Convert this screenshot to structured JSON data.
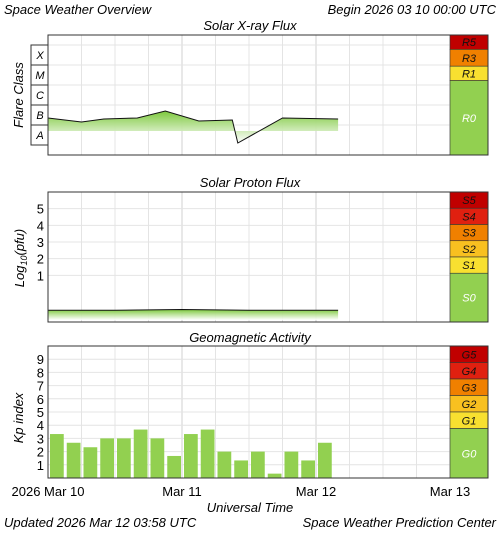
{
  "header": {
    "title": "Space Weather Overview",
    "begin": "Begin 2026 03 10 00:00 UTC"
  },
  "footer": {
    "updated": "Updated 2026 Mar 12 03:58 UTC",
    "center": "Space Weather Prediction Center"
  },
  "chart_data": [
    {
      "type": "line",
      "title": "Solar X-ray Flux",
      "ylabel": "Flare Class",
      "y_scale": "flare class (log)",
      "ylim": [
        0,
        6
      ],
      "y_ticks": [
        "A",
        "B",
        "C",
        "M",
        "X"
      ],
      "x": [
        "2026-03-10T00:00",
        "2026-03-10T06:00",
        "2026-03-10T10:00",
        "2026-03-10T16:00",
        "2026-03-10T21:00",
        "2026-03-11T03:00",
        "2026-03-11T09:00",
        "2026-03-11T10:00",
        "2026-03-11T18:00",
        "2026-03-12T03:58"
      ],
      "values": [
        1.85,
        1.65,
        1.8,
        1.85,
        2.2,
        1.7,
        1.75,
        0.6,
        1.85,
        1.8
      ],
      "scale_levels": [
        {
          "label": "R5",
          "color": "#c00000"
        },
        {
          "label": "R3",
          "color": "#f08000"
        },
        {
          "label": "R1",
          "color": "#f8e030"
        },
        {
          "label": "R0",
          "color": "#92d050"
        }
      ]
    },
    {
      "type": "line",
      "title": "Solar Proton Flux",
      "ylabel": "Log10(pfu)",
      "ylim": [
        -1.8,
        6
      ],
      "y_ticks": [
        1,
        2,
        3,
        4,
        5
      ],
      "x": [
        "2026-03-10T00:00",
        "2026-03-10T12:00",
        "2026-03-11T00:00",
        "2026-03-11T12:00",
        "2026-03-12T03:58"
      ],
      "values": [
        -1.1,
        -1.1,
        -1.05,
        -1.1,
        -1.1
      ],
      "scale_levels": [
        {
          "label": "S5",
          "color": "#c00000"
        },
        {
          "label": "S4",
          "color": "#e02010"
        },
        {
          "label": "S3",
          "color": "#f08000"
        },
        {
          "label": "S2",
          "color": "#f8c020"
        },
        {
          "label": "S1",
          "color": "#f8e030"
        },
        {
          "label": "S0",
          "color": "#92d050"
        }
      ]
    },
    {
      "type": "bar",
      "title": "Geomagnetic Activity",
      "ylabel": "Kp index",
      "ylim": [
        0,
        10
      ],
      "y_ticks": [
        1,
        2,
        3,
        4,
        5,
        6,
        7,
        8,
        9
      ],
      "categories": [
        "2026-03-10T00:00",
        "2026-03-10T03:00",
        "2026-03-10T06:00",
        "2026-03-10T09:00",
        "2026-03-10T12:00",
        "2026-03-10T15:00",
        "2026-03-10T18:00",
        "2026-03-10T21:00",
        "2026-03-11T00:00",
        "2026-03-11T03:00",
        "2026-03-11T06:00",
        "2026-03-11T09:00",
        "2026-03-11T12:00",
        "2026-03-11T15:00",
        "2026-03-11T18:00",
        "2026-03-11T21:00",
        "2026-03-12T00:00"
      ],
      "values": [
        3.33,
        2.67,
        2.33,
        3.0,
        3.0,
        3.67,
        3.0,
        1.67,
        3.33,
        3.67,
        2.0,
        1.33,
        2.0,
        0.33,
        2.0,
        1.33,
        2.67
      ],
      "scale_levels": [
        {
          "label": "G5",
          "color": "#c00000"
        },
        {
          "label": "G4",
          "color": "#e02010"
        },
        {
          "label": "G3",
          "color": "#f08000"
        },
        {
          "label": "G2",
          "color": "#f8c020"
        },
        {
          "label": "G1",
          "color": "#f8e030"
        },
        {
          "label": "G0",
          "color": "#92d050"
        }
      ]
    }
  ],
  "x_axis": {
    "label": "Universal Time",
    "ticks": [
      "2026 Mar 10",
      "Mar 11",
      "Mar 12",
      "Mar 13"
    ],
    "start": "2026-03-10T00:00",
    "end": "2026-03-13T00:00"
  },
  "colors": {
    "bar": "#92d050",
    "fill_top": "#7cc83c",
    "fill_bottom": "#ffffff",
    "grid": "#e4e4e4",
    "plot_border": "#333333"
  }
}
